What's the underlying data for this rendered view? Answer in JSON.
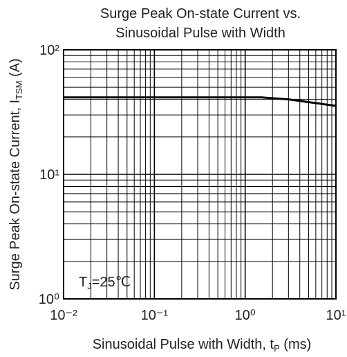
{
  "chart_data": {
    "type": "line",
    "title": [
      "Surge Peak On-state Current vs.",
      "Sinusoidal Pulse with Width"
    ],
    "xlabel": {
      "main": "Sinusoidal Pulse with Width, t",
      "sub": "P",
      "end": " (ms)"
    },
    "ylabel": {
      "main": "Surge Peak On-state Current, I",
      "sub": "TSM",
      "end": " (A)"
    },
    "annotation": {
      "main": "T",
      "sub": "J",
      "end": "=25℃"
    },
    "x": [
      0.01,
      0.1,
      1,
      1.5,
      3,
      10
    ],
    "series": [
      {
        "color": "#000000",
        "values": [
          41.5,
          41.5,
          41.5,
          41.5,
          40,
          35.5
        ]
      }
    ],
    "xscale": "log",
    "yscale": "log",
    "xlim": [
      0.01,
      10
    ],
    "ylim": [
      1,
      100
    ],
    "xticks": [
      {
        "value": 0.01,
        "label": "10⁻²"
      },
      {
        "value": 0.1,
        "label": "10⁻¹"
      },
      {
        "value": 1,
        "label": "10⁰"
      },
      {
        "value": 10,
        "label": "10¹"
      }
    ],
    "yticks": [
      {
        "value": 1,
        "label": "10⁰"
      },
      {
        "value": 10,
        "label": "10¹"
      },
      {
        "value": 100,
        "label": "10²"
      }
    ],
    "grid": true,
    "minor_grid": true
  }
}
